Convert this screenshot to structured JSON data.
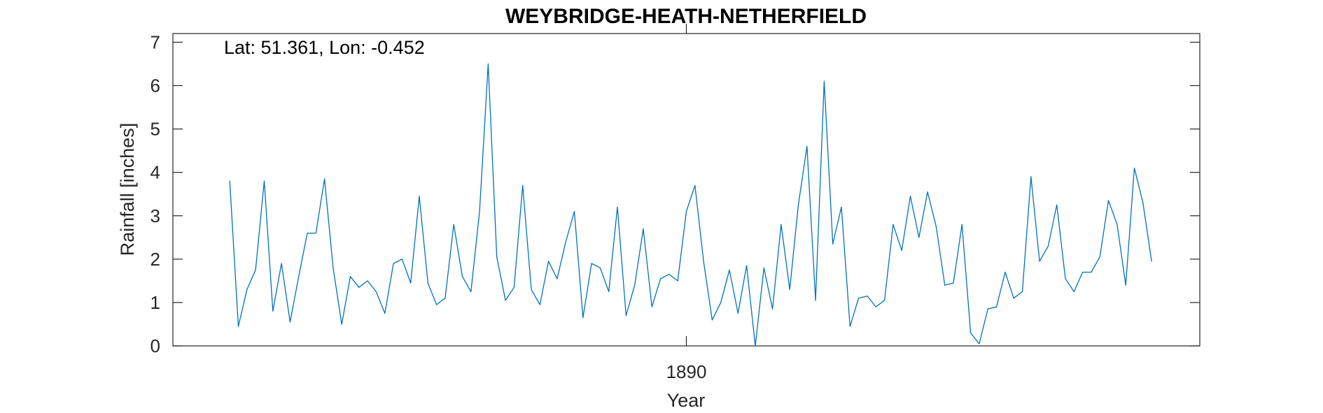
{
  "chart_data": {
    "type": "line",
    "title": "WEYBRIDGE-HEATH-NETHERFIELD",
    "annotation": "Lat: 51.361, Lon: -0.452",
    "xlabel": "Year",
    "ylabel": "Rainfall [inches]",
    "xlim": [
      1875.1,
      1904.9
    ],
    "ylim": [
      0,
      7.2
    ],
    "x_ticks": [
      {
        "value": 1890,
        "label": "1890"
      }
    ],
    "y_ticks": [
      0,
      1,
      2,
      3,
      4,
      5,
      6,
      7
    ],
    "grid": false,
    "box": true,
    "series": [
      {
        "color": "#0072BD",
        "x_start": 1876.75,
        "x_step": 0.25,
        "values": [
          3.8,
          0.45,
          1.3,
          1.75,
          3.8,
          0.8,
          1.9,
          0.55,
          1.6,
          2.6,
          2.6,
          3.85,
          1.8,
          0.5,
          1.6,
          1.35,
          1.5,
          1.25,
          0.75,
          1.9,
          2.0,
          1.45,
          3.45,
          1.45,
          0.95,
          1.1,
          2.8,
          1.6,
          1.25,
          3.1,
          6.5,
          2.05,
          1.05,
          1.35,
          3.7,
          1.3,
          0.95,
          1.95,
          1.55,
          2.4,
          3.1,
          0.65,
          1.9,
          1.8,
          1.25,
          3.2,
          0.7,
          1.4,
          2.7,
          0.9,
          1.55,
          1.65,
          1.5,
          3.1,
          3.7,
          1.95,
          0.6,
          1.0,
          1.75,
          0.75,
          1.85,
          0.0,
          1.8,
          0.85,
          2.8,
          1.3,
          3.25,
          4.6,
          1.05,
          6.1,
          2.35,
          3.2,
          0.45,
          1.1,
          1.15,
          0.9,
          1.05,
          2.8,
          2.2,
          3.45,
          2.5,
          3.55,
          2.75,
          1.4,
          1.45,
          2.8,
          0.3,
          0.05,
          0.85,
          0.9,
          1.7,
          1.1,
          1.25,
          3.9,
          1.95,
          2.3,
          3.25,
          1.55,
          1.25,
          1.7,
          1.7,
          2.05,
          3.35,
          2.8,
          1.4,
          4.1,
          3.3,
          1.95
        ]
      }
    ]
  }
}
